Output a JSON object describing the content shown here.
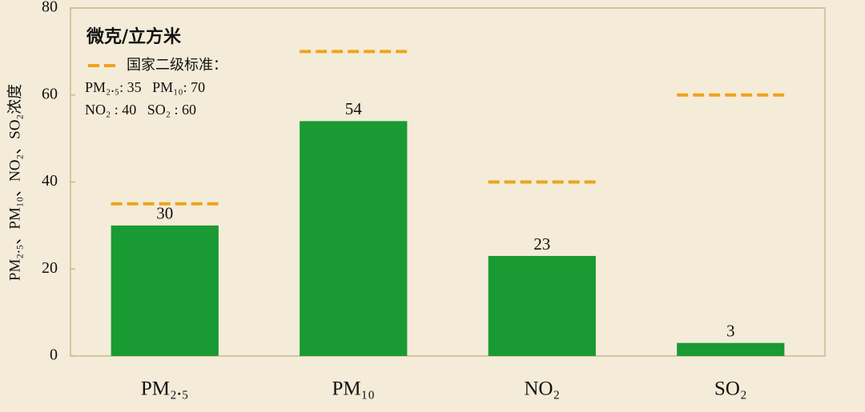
{
  "chart_data": {
    "type": "bar",
    "categories": [
      "PM₂.₅",
      "PM₁₀",
      "NO₂",
      "SO₂"
    ],
    "values": [
      30,
      54,
      23,
      3
    ],
    "color": "#1a9a32",
    "reference_values": [
      35,
      70,
      40,
      60
    ],
    "reference_color": "#f0a21e",
    "ylim": [
      0,
      80
    ],
    "yticks": [
      0,
      20,
      40,
      60,
      80
    ],
    "grid": false,
    "y_axis_label": "PM₂.₅、PM₁₀、NO₂、SO₂浓度",
    "legend": {
      "unit": "微克/立方米",
      "reference_name": "国家二级标准：",
      "lines": [
        "PM₂.₅: 35   PM₁₀: 70",
        "NO₂ : 40   SO₂ : 60"
      ]
    }
  }
}
